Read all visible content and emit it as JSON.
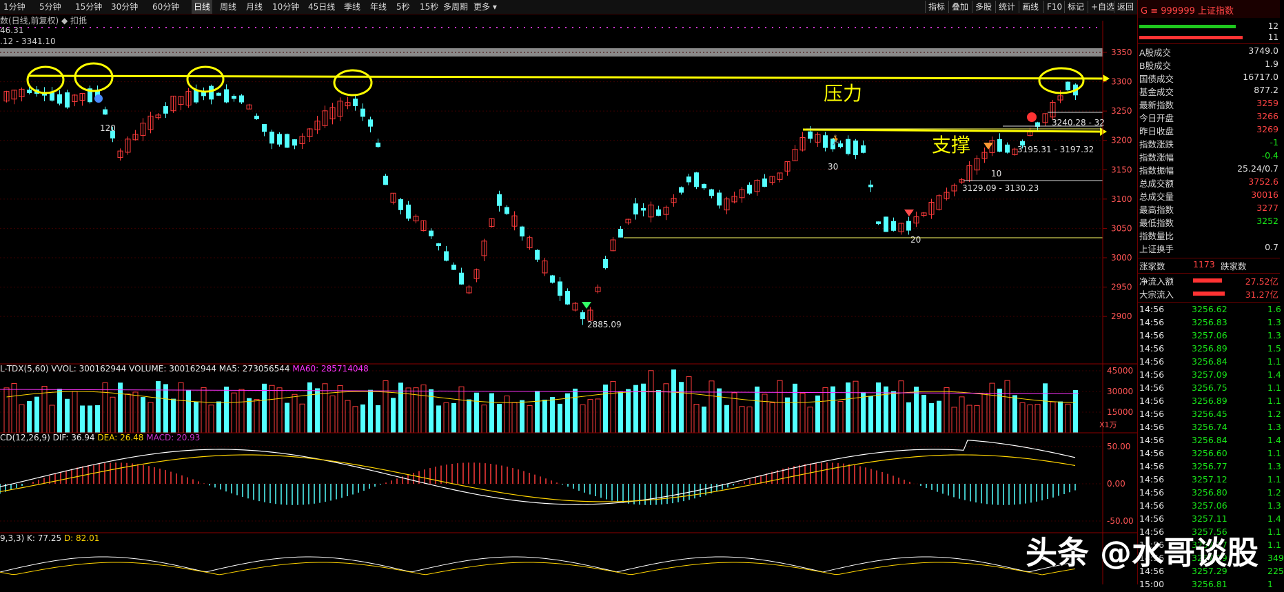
{
  "toolbar": {
    "timeframes": [
      "1分钟",
      "5分钟",
      "15分钟",
      "30分钟",
      "60分钟",
      "日线",
      "周线",
      "月线",
      "10分钟",
      "45日线",
      "季线",
      "年线",
      "5秒",
      "15秒",
      "多周期",
      "更多 ▾"
    ],
    "active_index": 5,
    "right_buttons": [
      "指标",
      "叠加",
      "多股",
      "统计",
      "画线",
      "F10",
      "标记",
      "+自选",
      "返回"
    ]
  },
  "chart": {
    "indicator_header": "数(日线,前复权)  ◆ 扣抵",
    "value_line1": "46.31",
    "value_line2": ".12 - 3341.10",
    "price_axis": [
      "3350",
      "3300",
      "3250",
      "3200",
      "3150",
      "3100",
      "3050",
      "3000",
      "2950",
      "2900"
    ],
    "annotations": {
      "resistance": "压力",
      "support": "支撑",
      "range1": "3240.28 - 32",
      "range2": "3195.31 - 3197.32",
      "range3": "3129.09 - 3130.23",
      "low": "2885.09",
      "n120": "120",
      "n30": "30",
      "n10": "10",
      "n20": "20"
    },
    "volume": {
      "label_prefix": "L-TDX(5,60)  VVOL: 300162944  VOLUME: 300162944  MA5: 273056544",
      "label_ma60": "MA60: 285714048",
      "axis": [
        "45000",
        "30000",
        "15000"
      ],
      "unit": "X1万"
    },
    "macd": {
      "label_prefix": "CD(12,26,9)  DIF: 36.94",
      "label_dea": "DEA: 26.48",
      "label_macd": "MACD: 20.93",
      "axis": [
        "50.00",
        "0.00",
        "-50.00"
      ]
    },
    "kdj": {
      "label_prefix": "9,3,3)  K: 77.25",
      "label_d": "D: 82.01"
    }
  },
  "right_panel": {
    "code": "G  ≡  999999 上证指数",
    "bar_v1": "12",
    "bar_v2": "11",
    "stats": [
      {
        "k": "A股成交",
        "v": "3749.0"
      },
      {
        "k": "B股成交",
        "v": "1.9"
      },
      {
        "k": "国债成交",
        "v": "16717.0"
      },
      {
        "k": "基金成交",
        "v": "877.2"
      },
      {
        "k": "最新指数",
        "v": "3259"
      },
      {
        "k": "今日开盘",
        "v": "3266"
      },
      {
        "k": "昨日收盘",
        "v": "3269"
      },
      {
        "k": "指数涨跌",
        "v": "-1"
      },
      {
        "k": "指数涨幅",
        "v": "-0.4"
      },
      {
        "k": "指数振幅",
        "v": "25.24/0.7"
      },
      {
        "k": "总成交额",
        "v": "3752.6"
      },
      {
        "k": "总成交量",
        "v": "30016"
      },
      {
        "k": "最高指数",
        "v": "3277"
      },
      {
        "k": "最低指数",
        "v": "3252"
      },
      {
        "k": "指数量比",
        "v": ""
      },
      {
        "k": "上证换手",
        "v": "0.7"
      }
    ],
    "up_label": "涨家数",
    "up_count": "1173",
    "down_label": "跌家数",
    "net_inflow_label": "净流入额",
    "net_inflow": "27.52亿",
    "big_inflow_label": "大宗流入",
    "big_inflow": "31.27亿",
    "ticks": [
      {
        "t": "14:56",
        "p": "3256.62",
        "s": "1.6"
      },
      {
        "t": "14:56",
        "p": "3256.83",
        "s": "1.3"
      },
      {
        "t": "14:56",
        "p": "3257.06",
        "s": "1.3"
      },
      {
        "t": "14:56",
        "p": "3256.89",
        "s": "1.5"
      },
      {
        "t": "14:56",
        "p": "3256.84",
        "s": "1.1"
      },
      {
        "t": "14:56",
        "p": "3257.09",
        "s": "1.4"
      },
      {
        "t": "14:56",
        "p": "3256.75",
        "s": "1.1"
      },
      {
        "t": "14:56",
        "p": "3256.89",
        "s": "1.1"
      },
      {
        "t": "14:56",
        "p": "3256.45",
        "s": "1.2"
      },
      {
        "t": "14:56",
        "p": "3256.74",
        "s": "1.3"
      },
      {
        "t": "14:56",
        "p": "3256.84",
        "s": "1.4"
      },
      {
        "t": "14:56",
        "p": "3256.60",
        "s": "1.1"
      },
      {
        "t": "14:56",
        "p": "3256.77",
        "s": "1.3"
      },
      {
        "t": "14:56",
        "p": "3257.12",
        "s": "1.1"
      },
      {
        "t": "14:56",
        "p": "3256.80",
        "s": "1.2"
      },
      {
        "t": "14:56",
        "p": "3257.06",
        "s": "1.3"
      },
      {
        "t": "14:56",
        "p": "3257.11",
        "s": "1.4"
      },
      {
        "t": "14:56",
        "p": "3257.56",
        "s": "1.1"
      },
      {
        "t": "14:56",
        "p": "3257.17",
        "s": "1.1"
      },
      {
        "t": "14:56",
        "p": "3257.29",
        "s": "349"
      },
      {
        "t": "14:56",
        "p": "3257.29",
        "s": "225"
      },
      {
        "t": "15:00",
        "p": "3256.81",
        "s": "1"
      }
    ]
  },
  "watermark": "头条 @水哥谈股",
  "colors": {
    "up": "#ff3b3b",
    "down": "#54ffff",
    "ma": "#ffd400",
    "dif": "#ffffff",
    "dea": "#ffd400",
    "macd_label": "#cc33cc",
    "bg": "#000000",
    "yellow": "#ffff00"
  }
}
